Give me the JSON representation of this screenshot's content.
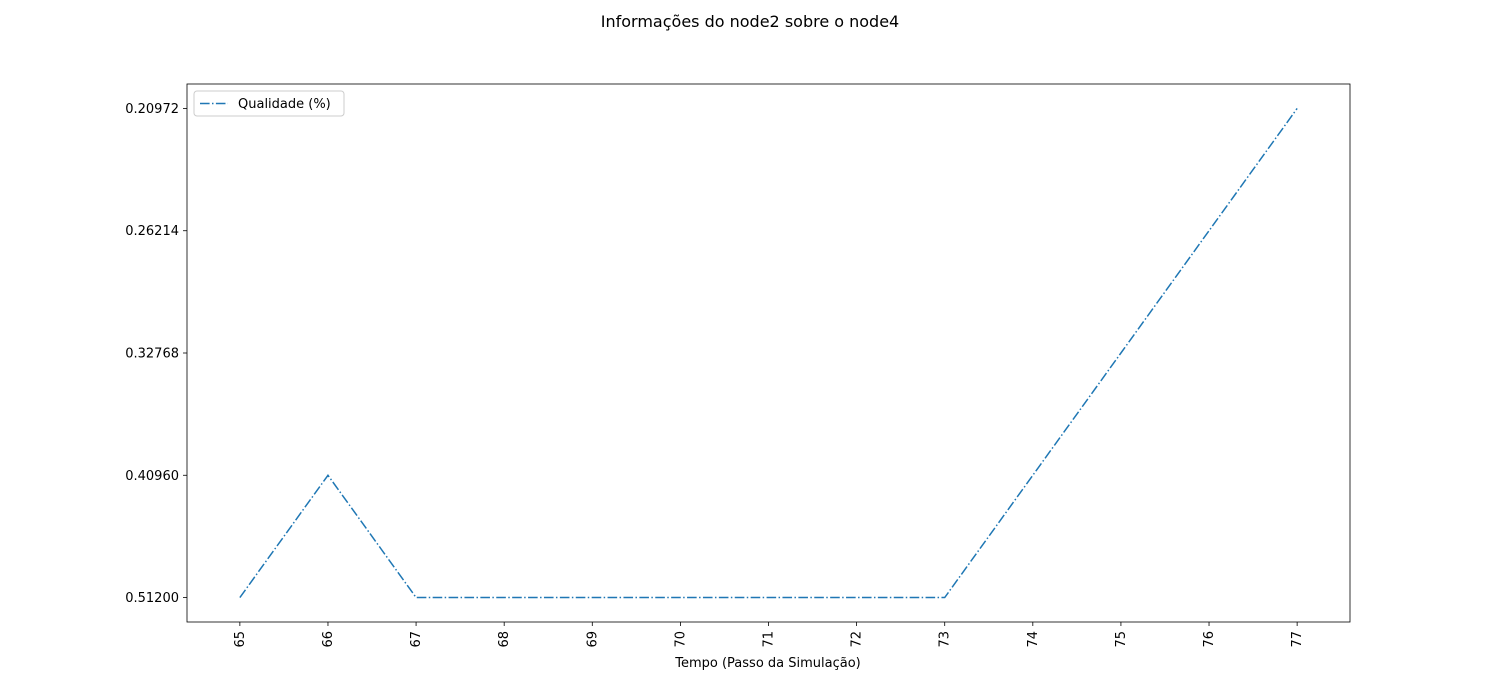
{
  "chart_data": {
    "type": "line",
    "title": "Informações do node2 sobre o node4",
    "xlabel": "Tempo (Passo da Simulação)",
    "x": [
      65,
      66,
      67,
      68,
      69,
      70,
      71,
      72,
      73,
      74,
      75,
      76,
      77
    ],
    "xlim": [
      64.4,
      77.6
    ],
    "xticks": [
      65,
      66,
      67,
      68,
      69,
      70,
      71,
      72,
      73,
      74,
      75,
      76,
      77
    ],
    "ycategories": [
      "0.51200",
      "0.40960",
      "0.32768",
      "0.26214",
      "0.20972"
    ],
    "series": [
      {
        "name": "Qualidade (%)",
        "color": "#1f77b4",
        "linestyle": "dashdot",
        "values": [
          "0.51200",
          "0.40960",
          "0.51200",
          "0.51200",
          "0.51200",
          "0.51200",
          "0.51200",
          "0.51200",
          "0.51200",
          "0.40960",
          "0.32768",
          "0.26214",
          "0.20972"
        ]
      }
    ],
    "legend": "upper left"
  }
}
